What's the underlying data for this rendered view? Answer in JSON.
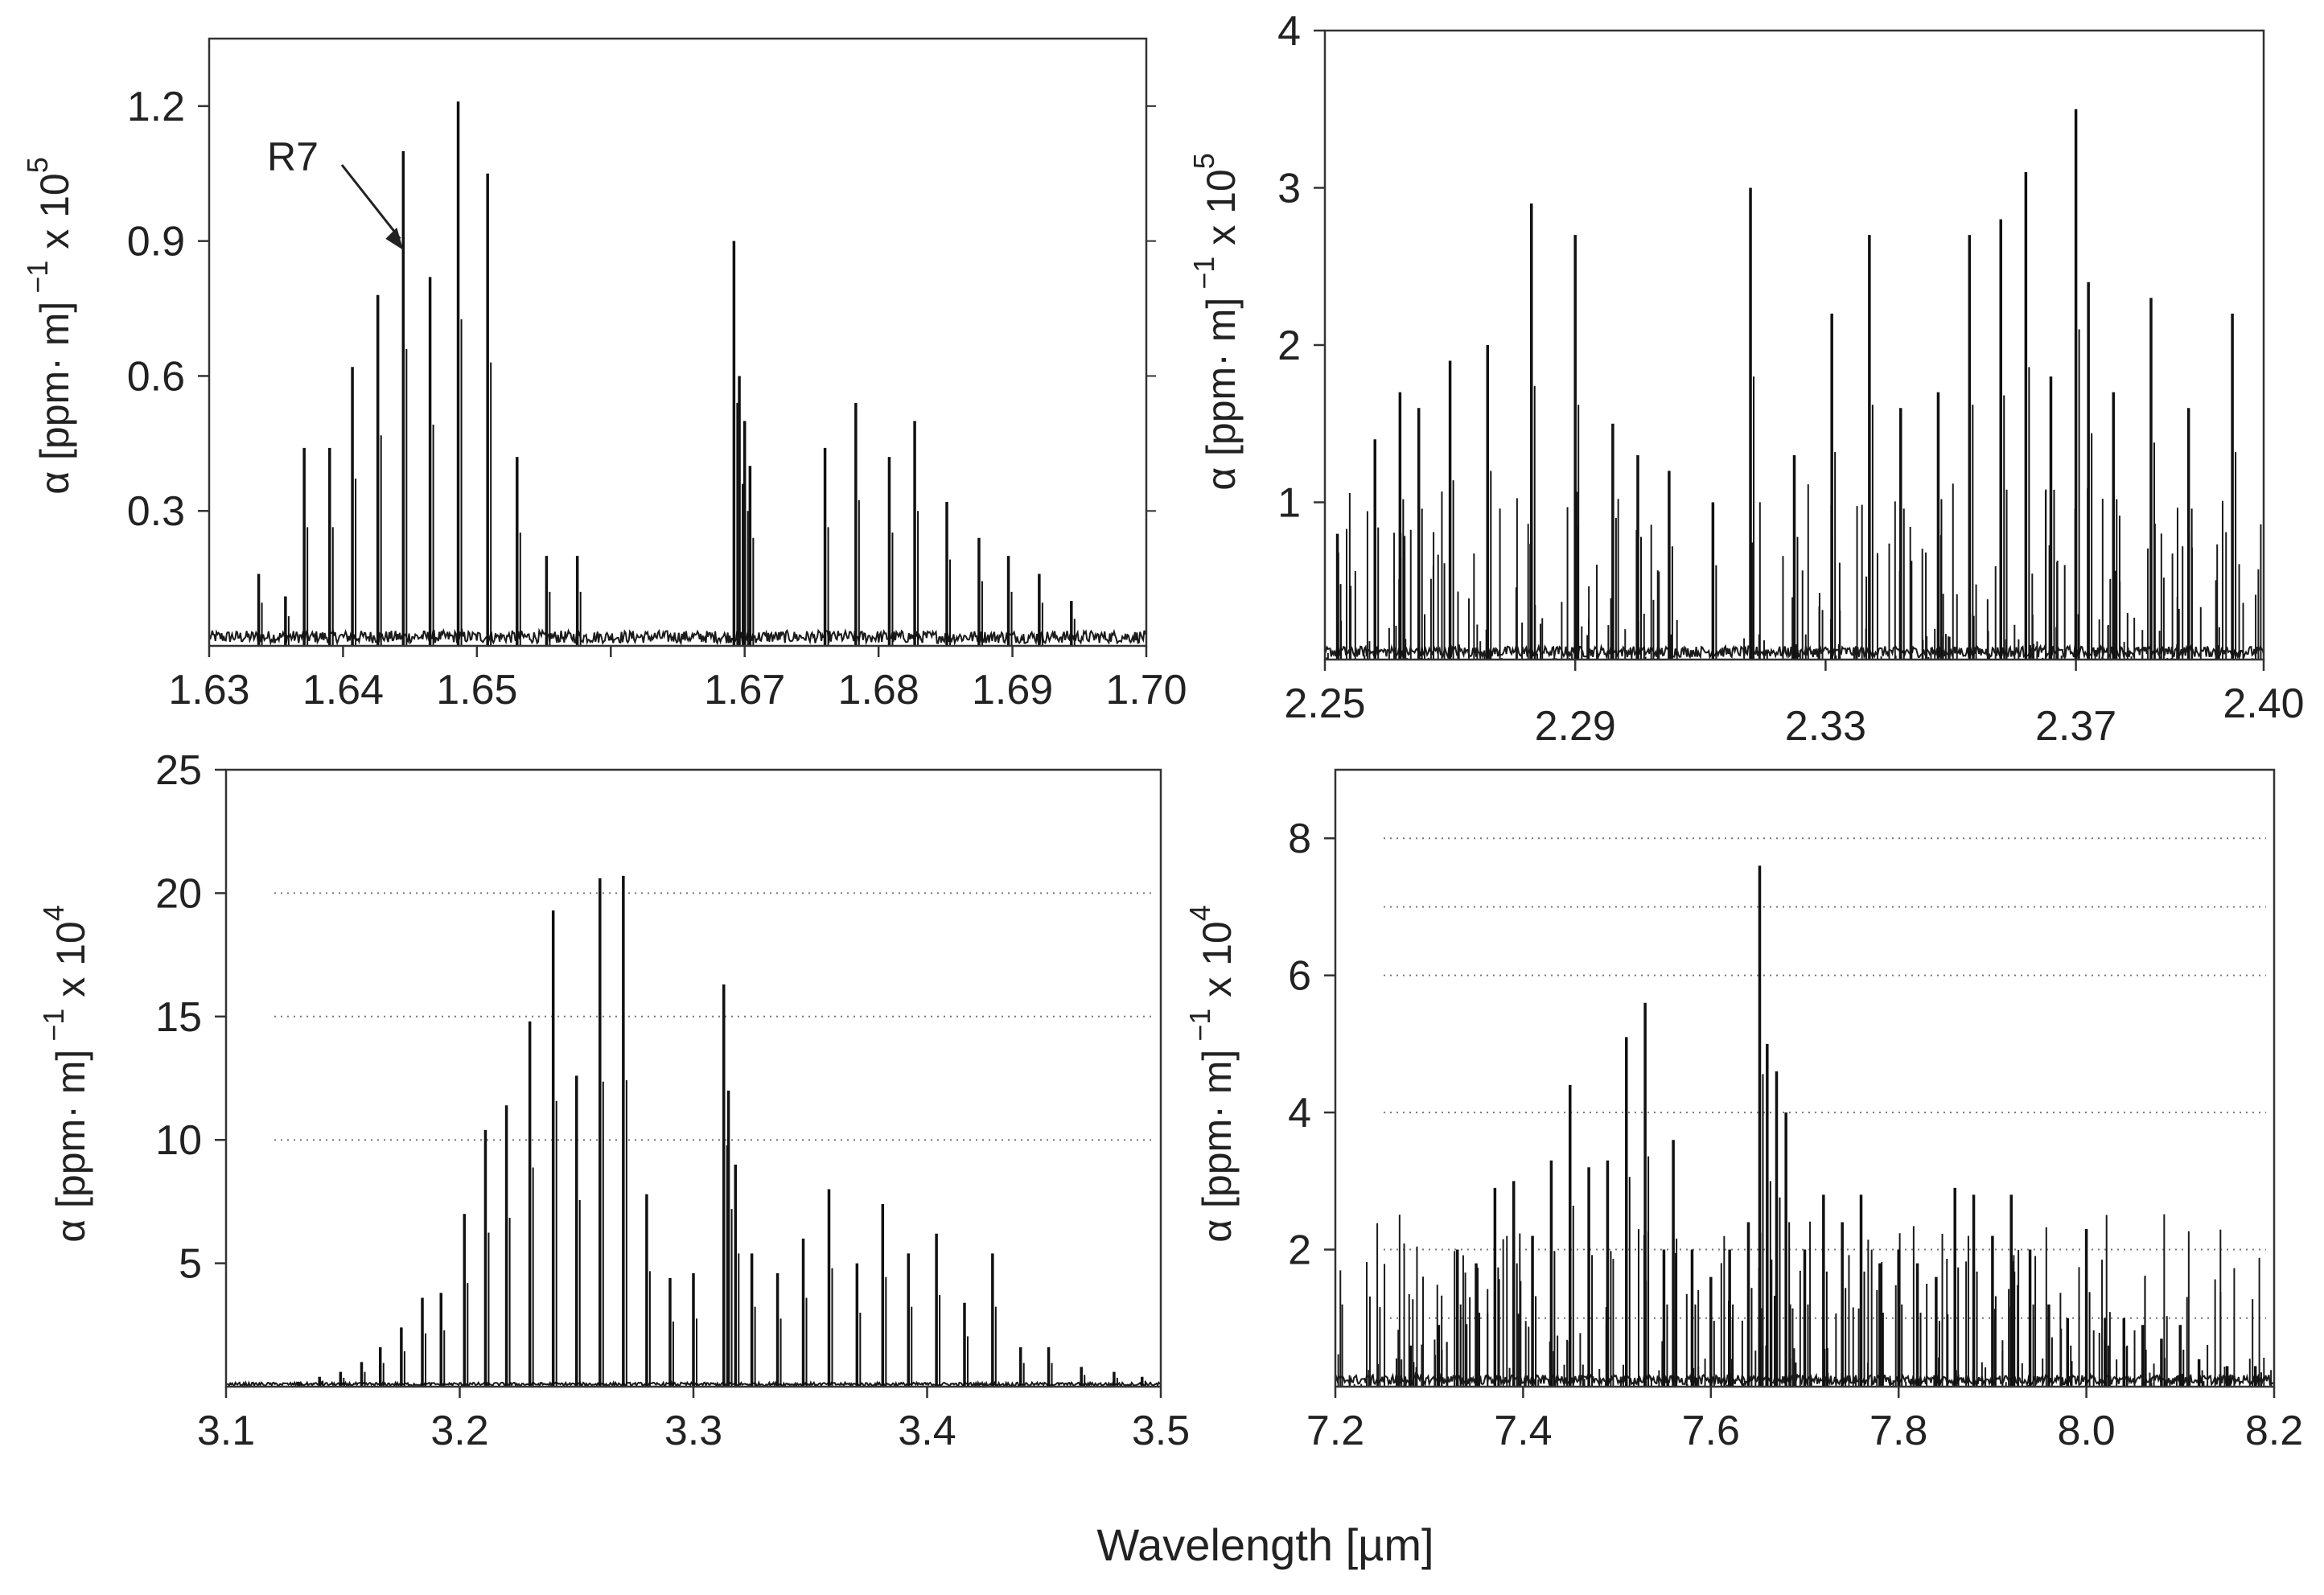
{
  "figure": {
    "xlabel": "Wavelength [µm]"
  },
  "chart_data": [
    {
      "type": "line",
      "title": "",
      "xlabel": "",
      "ylabel": "α [ppm· m]",
      "ylabel_sup": "−1",
      "ylabel_scale": "x 10",
      "ylabel_exp": "5",
      "xlim": [
        1.63,
        1.7
      ],
      "ylim": [
        0,
        1.35
      ],
      "xticks": [
        1.63,
        1.64,
        1.65,
        1.66,
        1.67,
        1.68,
        1.69,
        1.7
      ],
      "xtick_labels": [
        "1.63",
        "1.64",
        "1.65",
        "",
        "1.67",
        "1.68",
        "1.69",
        "1.70"
      ],
      "yticks": [
        0.3,
        0.6,
        0.9,
        1.2
      ],
      "ytick_labels": [
        "0.3",
        "0.6",
        "0.9",
        "1.2"
      ],
      "grid": false,
      "annotations": [
        {
          "text": "R7",
          "x": 1.6445,
          "y": 0.88
        }
      ],
      "peaks": {
        "x": [
          1.6337,
          1.6357,
          1.6371,
          1.639,
          1.6407,
          1.6426,
          1.6445,
          1.6465,
          1.6486,
          1.6508,
          1.653,
          1.6552,
          1.6575,
          1.6692,
          1.6696,
          1.67,
          1.6704,
          1.676,
          1.6783,
          1.6808,
          1.6827,
          1.6851,
          1.6875,
          1.6897,
          1.692,
          1.6944
        ],
        "y": [
          0.16,
          0.11,
          0.44,
          0.44,
          0.62,
          0.78,
          1.1,
          0.82,
          1.21,
          1.05,
          0.42,
          0.2,
          0.2,
          0.9,
          0.6,
          0.5,
          0.4,
          0.44,
          0.54,
          0.42,
          0.5,
          0.32,
          0.24,
          0.2,
          0.16,
          0.1
        ]
      },
      "baseline": 0.02
    },
    {
      "type": "line",
      "title": "",
      "xlabel": "",
      "ylabel": "α [ppm· m]",
      "ylabel_sup": "−1",
      "ylabel_scale": "x 10",
      "ylabel_exp": "5",
      "xlim": [
        2.25,
        2.4
      ],
      "ylim": [
        0,
        4
      ],
      "xticks": [
        2.25,
        2.29,
        2.33,
        2.37,
        2.4
      ],
      "xtick_labels": [
        "2.25",
        "2.29",
        "2.33",
        "2.37",
        "2.40"
      ],
      "yticks": [
        1,
        2,
        3,
        4
      ],
      "ytick_labels": [
        "1",
        "2",
        "3",
        "4"
      ],
      "grid": false,
      "peaks": {
        "x": [
          2.252,
          2.258,
          2.262,
          2.265,
          2.27,
          2.276,
          2.283,
          2.29,
          2.296,
          2.3,
          2.305,
          2.312,
          2.318,
          2.325,
          2.331,
          2.337,
          2.342,
          2.348,
          2.353,
          2.358,
          2.362,
          2.366,
          2.37,
          2.372,
          2.376,
          2.382,
          2.388,
          2.395
        ],
        "y": [
          0.8,
          1.4,
          1.7,
          1.6,
          1.9,
          2.0,
          2.9,
          2.7,
          1.5,
          1.3,
          1.2,
          1.0,
          3.0,
          1.3,
          2.2,
          2.7,
          1.6,
          1.7,
          2.7,
          2.8,
          3.1,
          1.8,
          3.5,
          2.4,
          1.7,
          2.3,
          1.6,
          2.2
        ]
      },
      "baseline": 0.05
    },
    {
      "type": "line",
      "title": "",
      "xlabel": "",
      "ylabel": "α [ppm· m]",
      "ylabel_sup": "−1",
      "ylabel_scale": "x 10",
      "ylabel_exp": "4",
      "xlim": [
        3.1,
        3.5
      ],
      "ylim": [
        0,
        25
      ],
      "xticks": [
        3.1,
        3.2,
        3.3,
        3.4,
        3.5
      ],
      "xtick_labels": [
        "3.1",
        "3.2",
        "3.3",
        "3.4",
        "3.5"
      ],
      "yticks": [
        5,
        10,
        15,
        20,
        25
      ],
      "ytick_labels": [
        "5",
        "10",
        "15",
        "20",
        "25"
      ],
      "dotted_gridlines_y": [
        10,
        15,
        20
      ],
      "grid": "dotted",
      "peaks": {
        "x": [
          3.131,
          3.14,
          3.149,
          3.158,
          3.166,
          3.175,
          3.184,
          3.192,
          3.202,
          3.211,
          3.22,
          3.23,
          3.24,
          3.25,
          3.26,
          3.27,
          3.28,
          3.29,
          3.3,
          3.313,
          3.315,
          3.318,
          3.325,
          3.336,
          3.347,
          3.358,
          3.37,
          3.381,
          3.392,
          3.404,
          3.416,
          3.428,
          3.44,
          3.452,
          3.466,
          3.48,
          3.492
        ],
        "y": [
          0.2,
          0.4,
          0.6,
          1.0,
          1.6,
          2.4,
          3.6,
          3.8,
          7.0,
          10.4,
          11.4,
          14.8,
          19.3,
          12.6,
          20.6,
          20.7,
          7.8,
          4.4,
          4.6,
          16.3,
          12.0,
          9.0,
          5.4,
          4.6,
          6.0,
          8.0,
          5.0,
          7.4,
          5.4,
          6.2,
          3.4,
          5.4,
          1.6,
          1.6,
          0.8,
          0.6,
          0.4
        ]
      },
      "baseline": 0.1
    },
    {
      "type": "line",
      "title": "",
      "xlabel": "",
      "ylabel": "α [ppm· m]",
      "ylabel_sup": "−1",
      "ylabel_scale": "x 10",
      "ylabel_exp": "4",
      "xlim": [
        7.2,
        8.2
      ],
      "ylim": [
        0,
        9
      ],
      "xticks": [
        7.2,
        7.4,
        7.6,
        7.8,
        8.0,
        8.2
      ],
      "xtick_labels": [
        "7.2",
        "7.4",
        "7.6",
        "7.8",
        "8.0",
        "8.2"
      ],
      "yticks": [
        2,
        4,
        6,
        8
      ],
      "ytick_labels": [
        "2",
        "4",
        "6",
        "8"
      ],
      "dotted_gridlines_y": [
        1,
        2,
        4,
        6,
        7,
        8
      ],
      "grid": "dotted",
      "peaks": {
        "x": [
          7.28,
          7.31,
          7.33,
          7.35,
          7.37,
          7.39,
          7.41,
          7.43,
          7.45,
          7.47,
          7.49,
          7.51,
          7.53,
          7.55,
          7.56,
          7.58,
          7.6,
          7.62,
          7.64,
          7.652,
          7.66,
          7.67,
          7.68,
          7.7,
          7.72,
          7.74,
          7.76,
          7.78,
          7.8,
          7.82,
          7.84,
          7.86,
          7.88,
          7.9,
          7.92,
          7.94,
          7.96,
          7.98,
          8.0,
          8.02,
          8.04,
          8.06,
          8.08,
          8.1,
          8.12,
          8.15,
          8.18
        ],
        "y": [
          0.6,
          0.9,
          2.0,
          1.8,
          2.9,
          3.0,
          2.2,
          3.3,
          4.4,
          3.2,
          3.3,
          5.1,
          5.6,
          2.0,
          3.6,
          2.0,
          1.6,
          2.0,
          2.4,
          7.6,
          5.0,
          4.6,
          4.0,
          2.0,
          2.8,
          2.4,
          2.8,
          1.8,
          2.0,
          1.8,
          1.6,
          2.9,
          2.8,
          2.2,
          2.8,
          2.0,
          1.2,
          1.0,
          2.3,
          1.0,
          1.0,
          0.9,
          0.7,
          0.9,
          0.4,
          0.3,
          0.3
        ]
      },
      "baseline": 0.1
    }
  ]
}
